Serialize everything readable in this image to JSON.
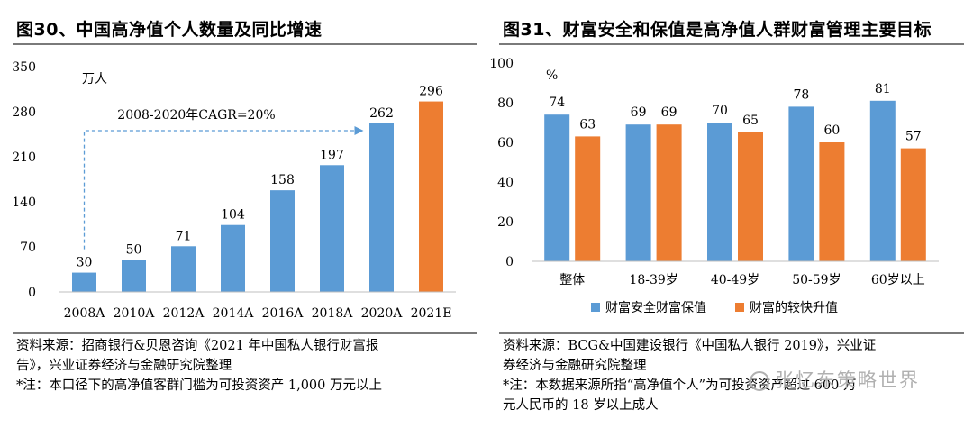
{
  "left": {
    "title": "图30、中国高净值个人数量及同比增速",
    "notes": [
      "资料来源：招商银行&贝恩咨询《2021 年中国私人银行财富报",
      "告》，兴业证券经济与金融研究院整理",
      "*注：本口径下的高净值客群门槛为可投资资产 1,000 万元以上"
    ]
  },
  "right": {
    "title": "图31、财富安全和保值是高净值人群财富管理主要目标",
    "notes": [
      "资料来源：BCG&中国建设银行《中国私人银行 2019》，兴业证",
      "券经济与金融研究院整理",
      "*注：本数据来源所指“高净值个人”为可投资资产超过 600 万",
      "元人民币的 18 岁以上成人"
    ]
  },
  "watermark": "张忆东策略世界",
  "chart_data": [
    {
      "type": "bar",
      "title": "",
      "unit_label": "万人",
      "categories": [
        "2008A",
        "2010A",
        "2012A",
        "2014A",
        "2016A",
        "2018A",
        "2020A",
        "2021E"
      ],
      "values": [
        30,
        50,
        71,
        104,
        158,
        197,
        262,
        296
      ],
      "highlight_index": 7,
      "colors": {
        "base": "#5b9bd5",
        "highlight": "#ed7d31",
        "annotation": "#5b9bd5"
      },
      "ylim": [
        0,
        350
      ],
      "yticks": [
        0,
        70,
        140,
        210,
        280,
        350
      ],
      "annotation": {
        "text": "2008-2020年CAGR=20%",
        "from_category": "2008A",
        "to_category": "2020A"
      },
      "grid": false
    },
    {
      "type": "bar",
      "title": "",
      "unit_label": "%",
      "categories": [
        "整体",
        "18-39岁",
        "40-49岁",
        "50-59岁",
        "60岁以上"
      ],
      "series": [
        {
          "name": "财富安全财富保值",
          "color": "#5b9bd5",
          "values": [
            74,
            69,
            70,
            78,
            81
          ]
        },
        {
          "name": "财富的较快升值",
          "color": "#ed7d31",
          "values": [
            63,
            69,
            65,
            60,
            57
          ]
        }
      ],
      "ylim": [
        0,
        100
      ],
      "yticks": [
        0,
        20,
        40,
        60,
        80,
        100
      ],
      "legend": "bottom",
      "grid": false
    }
  ]
}
